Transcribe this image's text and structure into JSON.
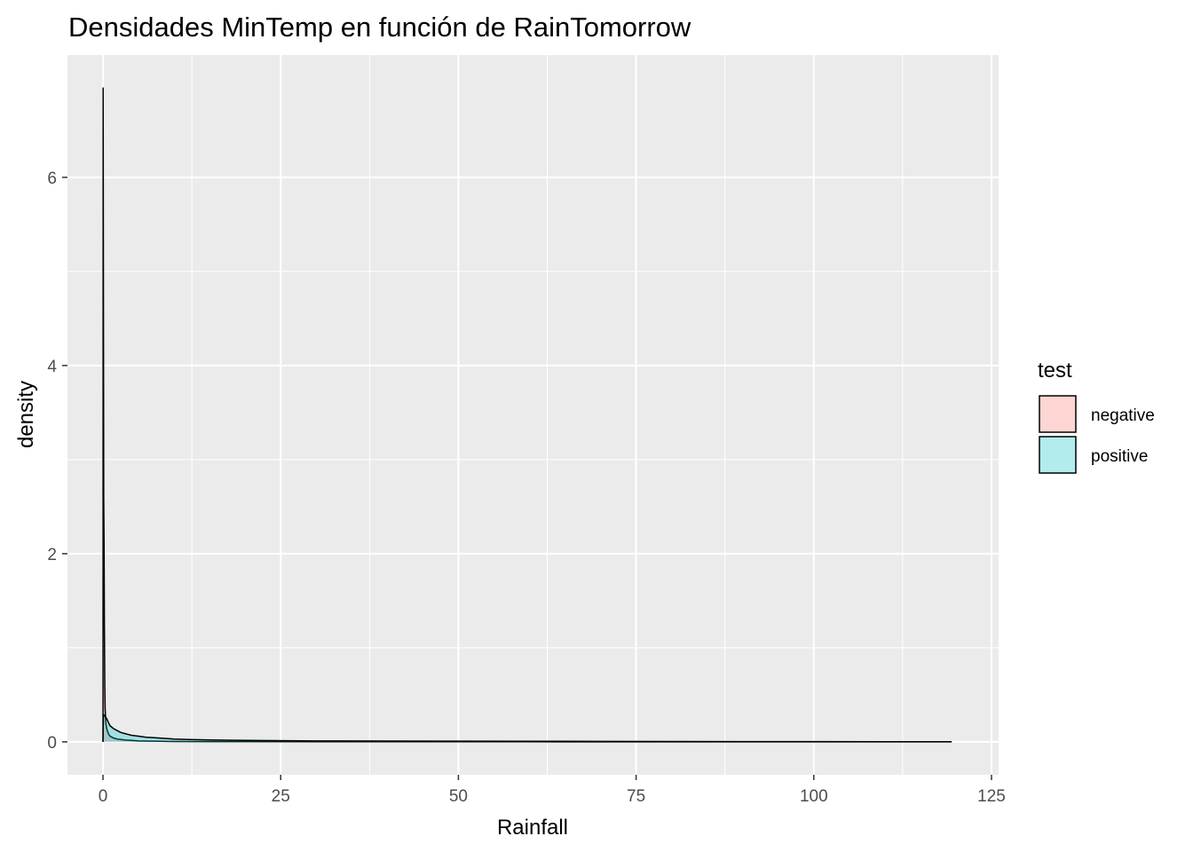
{
  "chart_data": {
    "type": "area",
    "title": "Densidades MinTemp en función de RainTomorrow",
    "xlabel": "Rainfall",
    "ylabel": "density",
    "xlim": [
      -5,
      126
    ],
    "ylim": [
      -0.35,
      7.3
    ],
    "x_ticks": [
      0,
      25,
      50,
      75,
      100,
      125
    ],
    "x_tick_labels": [
      "0",
      "25",
      "50",
      "75",
      "100",
      "125"
    ],
    "y_ticks": [
      0,
      2,
      4,
      6
    ],
    "y_tick_labels": [
      "0",
      "2",
      "4",
      "6"
    ],
    "grid": true,
    "legend": {
      "title": "test",
      "position": "right"
    },
    "series": [
      {
        "name": "negative",
        "color": "#F8766D",
        "fill_opacity": 0.3,
        "x": [
          0,
          0.02,
          0.05,
          0.08,
          0.1,
          0.15,
          0.2,
          0.25,
          0.3,
          0.4,
          0.5,
          0.6,
          0.8,
          1,
          1.5,
          2,
          3,
          4,
          5,
          6,
          8,
          10,
          15,
          20,
          30,
          40,
          50,
          60,
          70,
          80,
          90,
          100,
          110,
          119.4
        ],
        "values": [
          0,
          6.95,
          5.35,
          3.75,
          2.6,
          2.1,
          1.2,
          0.6,
          0.35,
          0.2,
          0.15,
          0.12,
          0.08,
          0.06,
          0.04,
          0.03,
          0.02,
          0.015,
          0.01,
          0.008,
          0.006,
          0.004,
          0.003,
          0.002,
          0.0015,
          0.001,
          0.001,
          0.0008,
          0.0006,
          0.0005,
          0.0004,
          0.0003,
          0.0002,
          0.0001
        ]
      },
      {
        "name": "positive",
        "color": "#00BFC4",
        "fill_opacity": 0.3,
        "x": [
          0,
          0.05,
          0.2,
          0.5,
          0.8,
          1,
          1.5,
          2,
          2.5,
          3,
          3.5,
          4,
          5,
          6,
          7,
          8,
          9,
          10,
          12,
          15,
          20,
          30,
          40,
          50,
          60,
          70,
          80,
          90,
          100,
          110,
          119.4
        ],
        "values": [
          0,
          0.29,
          0.28,
          0.25,
          0.2,
          0.17,
          0.14,
          0.12,
          0.1,
          0.09,
          0.08,
          0.07,
          0.06,
          0.05,
          0.045,
          0.04,
          0.035,
          0.03,
          0.025,
          0.02,
          0.015,
          0.01,
          0.008,
          0.007,
          0.006,
          0.005,
          0.004,
          0.003,
          0.002,
          0.0015,
          0.001
        ]
      }
    ]
  }
}
